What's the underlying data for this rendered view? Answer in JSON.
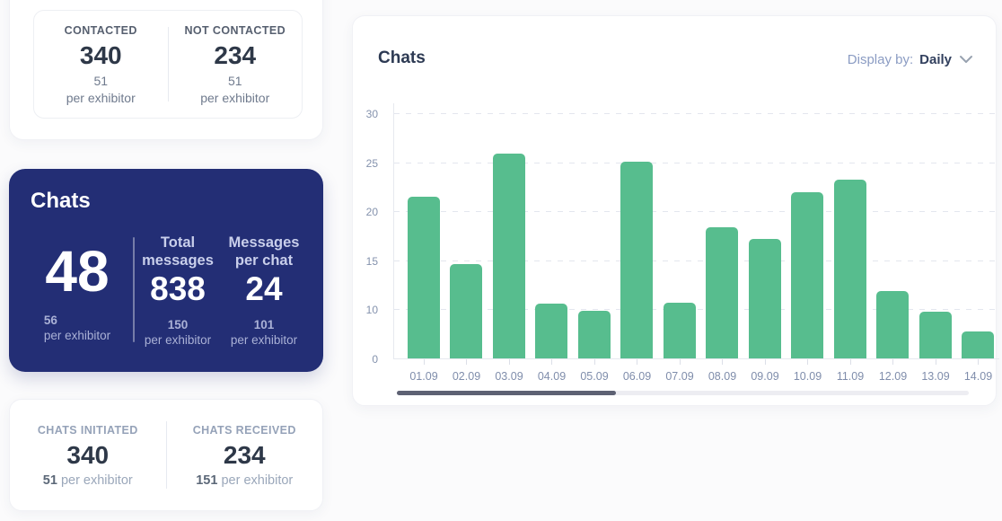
{
  "colors": {
    "primary_blue": "#232e75",
    "bar_green": "#57bd8e",
    "scroll_thumb": "#5d6173",
    "dark_text": "#2e3848",
    "muted_label": "#95a2b8",
    "axis_text": "#8492ad"
  },
  "contacts_card": {
    "items": [
      {
        "label": "CONTACTED",
        "value": "340",
        "per_value": "51",
        "per_label": "per exhibitor"
      },
      {
        "label": "NOT CONTACTED",
        "value": "234",
        "per_value": "51",
        "per_label": "per exhibitor"
      }
    ]
  },
  "chats_card": {
    "title": "Chats",
    "main": {
      "value": "48",
      "per_value": "56",
      "per_label": "per exhibitor"
    },
    "columns": [
      {
        "header": "Total messages",
        "value": "838",
        "per_value": "150",
        "per_label": "per exhibitor"
      },
      {
        "header": "Messages per chat",
        "value": "24",
        "per_value": "101",
        "per_label": "per exhibitor"
      }
    ]
  },
  "chats_breakdown_card": {
    "items": [
      {
        "label": "CHATS INITIATED",
        "value": "340",
        "per_value": "51",
        "per_label": "per exhibitor"
      },
      {
        "label": "CHATS RECEIVED",
        "value": "234",
        "per_value": "151",
        "per_label": "per exhibitor"
      }
    ]
  },
  "chart_card": {
    "title": "Chats",
    "display_by_label": "Display by:",
    "display_by_value": "Daily"
  },
  "chart_data": {
    "type": "bar",
    "title": "Chats",
    "categories": [
      "01.09",
      "02.09",
      "03.09",
      "04.09",
      "05.09",
      "06.09",
      "07.09",
      "08.09",
      "09.09",
      "10.09",
      "11.09",
      "12.09",
      "13.09",
      "14.09"
    ],
    "values": [
      21.5,
      14.6,
      25.9,
      10.6,
      9.7,
      25.1,
      10.7,
      18.4,
      17.2,
      21.9,
      23.2,
      11.9,
      9.6,
      5.5
    ],
    "y_ticks": [
      0,
      10,
      15,
      20,
      25,
      30
    ],
    "y_ticks_note": "ticks rendered evenly spaced; label 5 omitted",
    "xlabel": "",
    "ylabel": "",
    "grid": "horizontal-dashed",
    "legend": "none",
    "bar_color": "#57bd8e",
    "last_label_clipped": true,
    "scrollbar": {
      "thumb_fraction": 0.38,
      "position": "start"
    }
  }
}
